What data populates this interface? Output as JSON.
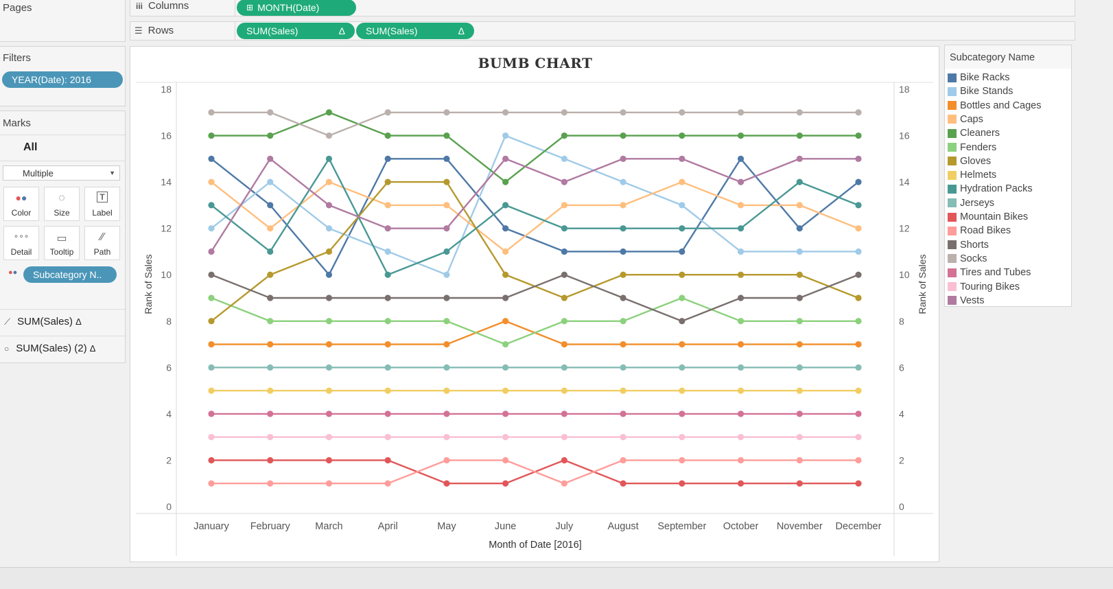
{
  "pages_label": "Pages",
  "shelves": {
    "columns": {
      "label": "Columns",
      "icon": "columns-icon",
      "pills": [
        "MONTH(Date)"
      ]
    },
    "rows": {
      "label": "Rows",
      "icon": "rows-icon",
      "pills": [
        "SUM(Sales)",
        "SUM(Sales)"
      ],
      "delta": "Δ"
    }
  },
  "filters": {
    "label": "Filters",
    "pill": "YEAR(Date): 2016"
  },
  "marks": {
    "label": "Marks",
    "all_label": "All",
    "type_select": "Multiple",
    "buttons": {
      "color": "Color",
      "size": "Size",
      "label": "Label",
      "detail": "Detail",
      "tooltip": "Tooltip",
      "path": "Path"
    },
    "color_pill": "Subcategory N..",
    "measures": [
      {
        "label": "SUM(Sales)",
        "delta": "Δ",
        "icon": "line-mark-icon"
      },
      {
        "label": "SUM(Sales) (2)",
        "delta": "Δ",
        "icon": "circle-mark-icon"
      }
    ]
  },
  "legend": {
    "title": "Subcategory Name",
    "items": [
      {
        "name": "Bike Racks",
        "color": "#4e79a7"
      },
      {
        "name": "Bike Stands",
        "color": "#a0cbe8"
      },
      {
        "name": "Bottles and Cages",
        "color": "#f28e2b"
      },
      {
        "name": "Caps",
        "color": "#ffbe7d"
      },
      {
        "name": "Cleaners",
        "color": "#59a14f"
      },
      {
        "name": "Fenders",
        "color": "#8cd17d"
      },
      {
        "name": "Gloves",
        "color": "#b6992d"
      },
      {
        "name": "Helmets",
        "color": "#f1ce63"
      },
      {
        "name": "Hydration Packs",
        "color": "#499894"
      },
      {
        "name": "Jerseys",
        "color": "#86bcb6"
      },
      {
        "name": "Mountain Bikes",
        "color": "#e15759"
      },
      {
        "name": "Road Bikes",
        "color": "#ff9d9a"
      },
      {
        "name": "Shorts",
        "color": "#79706e"
      },
      {
        "name": "Socks",
        "color": "#bab0ac"
      },
      {
        "name": "Tires and Tubes",
        "color": "#d37295"
      },
      {
        "name": "Touring Bikes",
        "color": "#fabfd2"
      },
      {
        "name": "Vests",
        "color": "#b07aa1"
      }
    ]
  },
  "chart_data": {
    "type": "line",
    "title": "BUMB CHART",
    "xlabel": "Month of Date [2016]",
    "ylabel": "Rank of Sales",
    "ylabel_right": "Rank of Sales",
    "ylim": [
      0,
      18
    ],
    "yticks": [
      0,
      2,
      4,
      6,
      8,
      10,
      12,
      14,
      16,
      18
    ],
    "categories": [
      "January",
      "February",
      "March",
      "April",
      "May",
      "June",
      "July",
      "August",
      "September",
      "October",
      "November",
      "December"
    ],
    "series": [
      {
        "name": "Bike Racks",
        "values": [
          15,
          13,
          10,
          15,
          15,
          12,
          11,
          11,
          11,
          15,
          12,
          14
        ]
      },
      {
        "name": "Bike Stands",
        "values": [
          12,
          14,
          12,
          11,
          10,
          16,
          15,
          14,
          13,
          11,
          11,
          11
        ]
      },
      {
        "name": "Bottles and Cages",
        "values": [
          7,
          7,
          7,
          7,
          7,
          8,
          7,
          7,
          7,
          7,
          7,
          7
        ]
      },
      {
        "name": "Caps",
        "values": [
          14,
          12,
          14,
          13,
          13,
          11,
          13,
          13,
          14,
          13,
          13,
          12
        ]
      },
      {
        "name": "Cleaners",
        "values": [
          16,
          16,
          17,
          16,
          16,
          14,
          16,
          16,
          16,
          16,
          16,
          16
        ]
      },
      {
        "name": "Fenders",
        "values": [
          9,
          8,
          8,
          8,
          8,
          7,
          8,
          8,
          9,
          8,
          8,
          8
        ]
      },
      {
        "name": "Gloves",
        "values": [
          8,
          10,
          11,
          14,
          14,
          10,
          9,
          10,
          10,
          10,
          10,
          9
        ]
      },
      {
        "name": "Helmets",
        "values": [
          5,
          5,
          5,
          5,
          5,
          5,
          5,
          5,
          5,
          5,
          5,
          5
        ]
      },
      {
        "name": "Hydration Packs",
        "values": [
          13,
          11,
          15,
          10,
          11,
          13,
          12,
          12,
          12,
          12,
          14,
          13
        ]
      },
      {
        "name": "Jerseys",
        "values": [
          6,
          6,
          6,
          6,
          6,
          6,
          6,
          6,
          6,
          6,
          6,
          6
        ]
      },
      {
        "name": "Mountain Bikes",
        "values": [
          2,
          2,
          2,
          2,
          1,
          1,
          2,
          1,
          1,
          1,
          1,
          1
        ]
      },
      {
        "name": "Road Bikes",
        "values": [
          1,
          1,
          1,
          1,
          2,
          2,
          1,
          2,
          2,
          2,
          2,
          2
        ]
      },
      {
        "name": "Shorts",
        "values": [
          10,
          9,
          9,
          9,
          9,
          9,
          10,
          9,
          8,
          9,
          9,
          10
        ]
      },
      {
        "name": "Socks",
        "values": [
          17,
          17,
          16,
          17,
          17,
          17,
          17,
          17,
          17,
          17,
          17,
          17
        ]
      },
      {
        "name": "Tires and Tubes",
        "values": [
          4,
          4,
          4,
          4,
          4,
          4,
          4,
          4,
          4,
          4,
          4,
          4
        ]
      },
      {
        "name": "Touring Bikes",
        "values": [
          3,
          3,
          3,
          3,
          3,
          3,
          3,
          3,
          3,
          3,
          3,
          3
        ]
      },
      {
        "name": "Vests",
        "values": [
          11,
          15,
          13,
          12,
          12,
          15,
          14,
          15,
          15,
          14,
          15,
          15
        ]
      }
    ],
    "grid": false,
    "legend_position": "right"
  }
}
